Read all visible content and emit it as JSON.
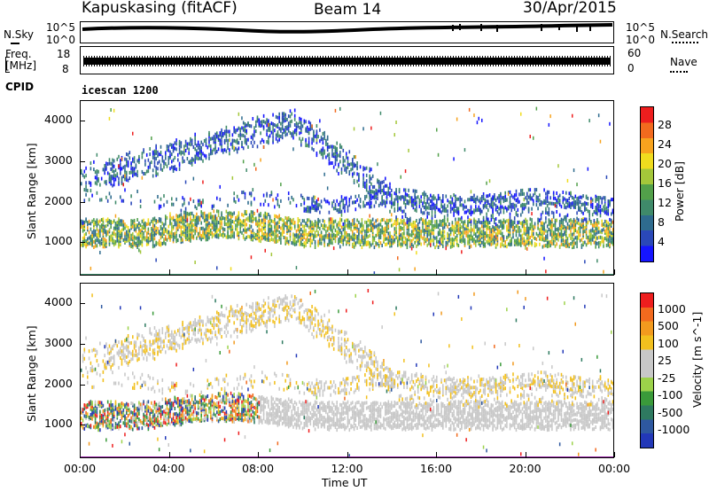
{
  "header": {
    "station": "Kapuskasing (fitACF)",
    "beam": "Beam 14",
    "date": "30/Apr/2015"
  },
  "noise_panel": {
    "left_label": "N.Sky",
    "right_label": "N.Search",
    "left_ticks": [
      "10^5",
      "10^0"
    ],
    "right_ticks": [
      "10^5",
      "10^0"
    ]
  },
  "freq_panel": {
    "left_label_line1": "Freq.",
    "left_label_line2": "[MHz]",
    "right_label": "Nave",
    "left_ticks": [
      "18",
      "8"
    ],
    "right_ticks": [
      "60",
      "0"
    ]
  },
  "cpid_panel": {
    "label": "CPID",
    "value": "icescan 1200"
  },
  "chart_data": [
    {
      "type": "heatmap",
      "title": "",
      "xlabel": "Time UT",
      "ylabel": "Slant Range [km]",
      "x_tick_labels": [
        "00:00",
        "04:00",
        "08:00",
        "12:00",
        "16:00",
        "20:00",
        "00:00"
      ],
      "y_tick_labels": [
        "1000",
        "2000",
        "3000",
        "4000"
      ],
      "ylim": [
        180,
        4500
      ],
      "colorbar": {
        "label": "Power [dB]",
        "tick_labels": [
          "4",
          "8",
          "12",
          "16",
          "20",
          "24",
          "28"
        ],
        "colors": [
          "#1515ff",
          "#2a48b8",
          "#2e6b8e",
          "#3f8a6a",
          "#52a04a",
          "#a4c73a",
          "#f0dc1e",
          "#f7a31e",
          "#f26a1e",
          "#ee1e1e"
        ]
      }
    },
    {
      "type": "heatmap",
      "title": "",
      "xlabel": "Time UT",
      "ylabel": "Slant Range [km]",
      "x_tick_labels": [
        "00:00",
        "04:00",
        "08:00",
        "12:00",
        "16:00",
        "20:00",
        "00:00"
      ],
      "y_tick_labels": [
        "1000",
        "2000",
        "3000",
        "4000"
      ],
      "ylim": [
        180,
        4500
      ],
      "colorbar": {
        "label": "Velocity [m s^-1]",
        "tick_labels": [
          "1000",
          "500",
          "100",
          "25",
          "-25",
          "-100",
          "-500",
          "-1000"
        ],
        "colors": [
          "#2238b8",
          "#2e58a0",
          "#2e7a60",
          "#3a9a3a",
          "#9cd24a",
          "#c8c8c8",
          "#c8c8c8",
          "#f2c01e",
          "#f29a1e",
          "#f26a1e",
          "#ee1e1e"
        ]
      }
    }
  ]
}
